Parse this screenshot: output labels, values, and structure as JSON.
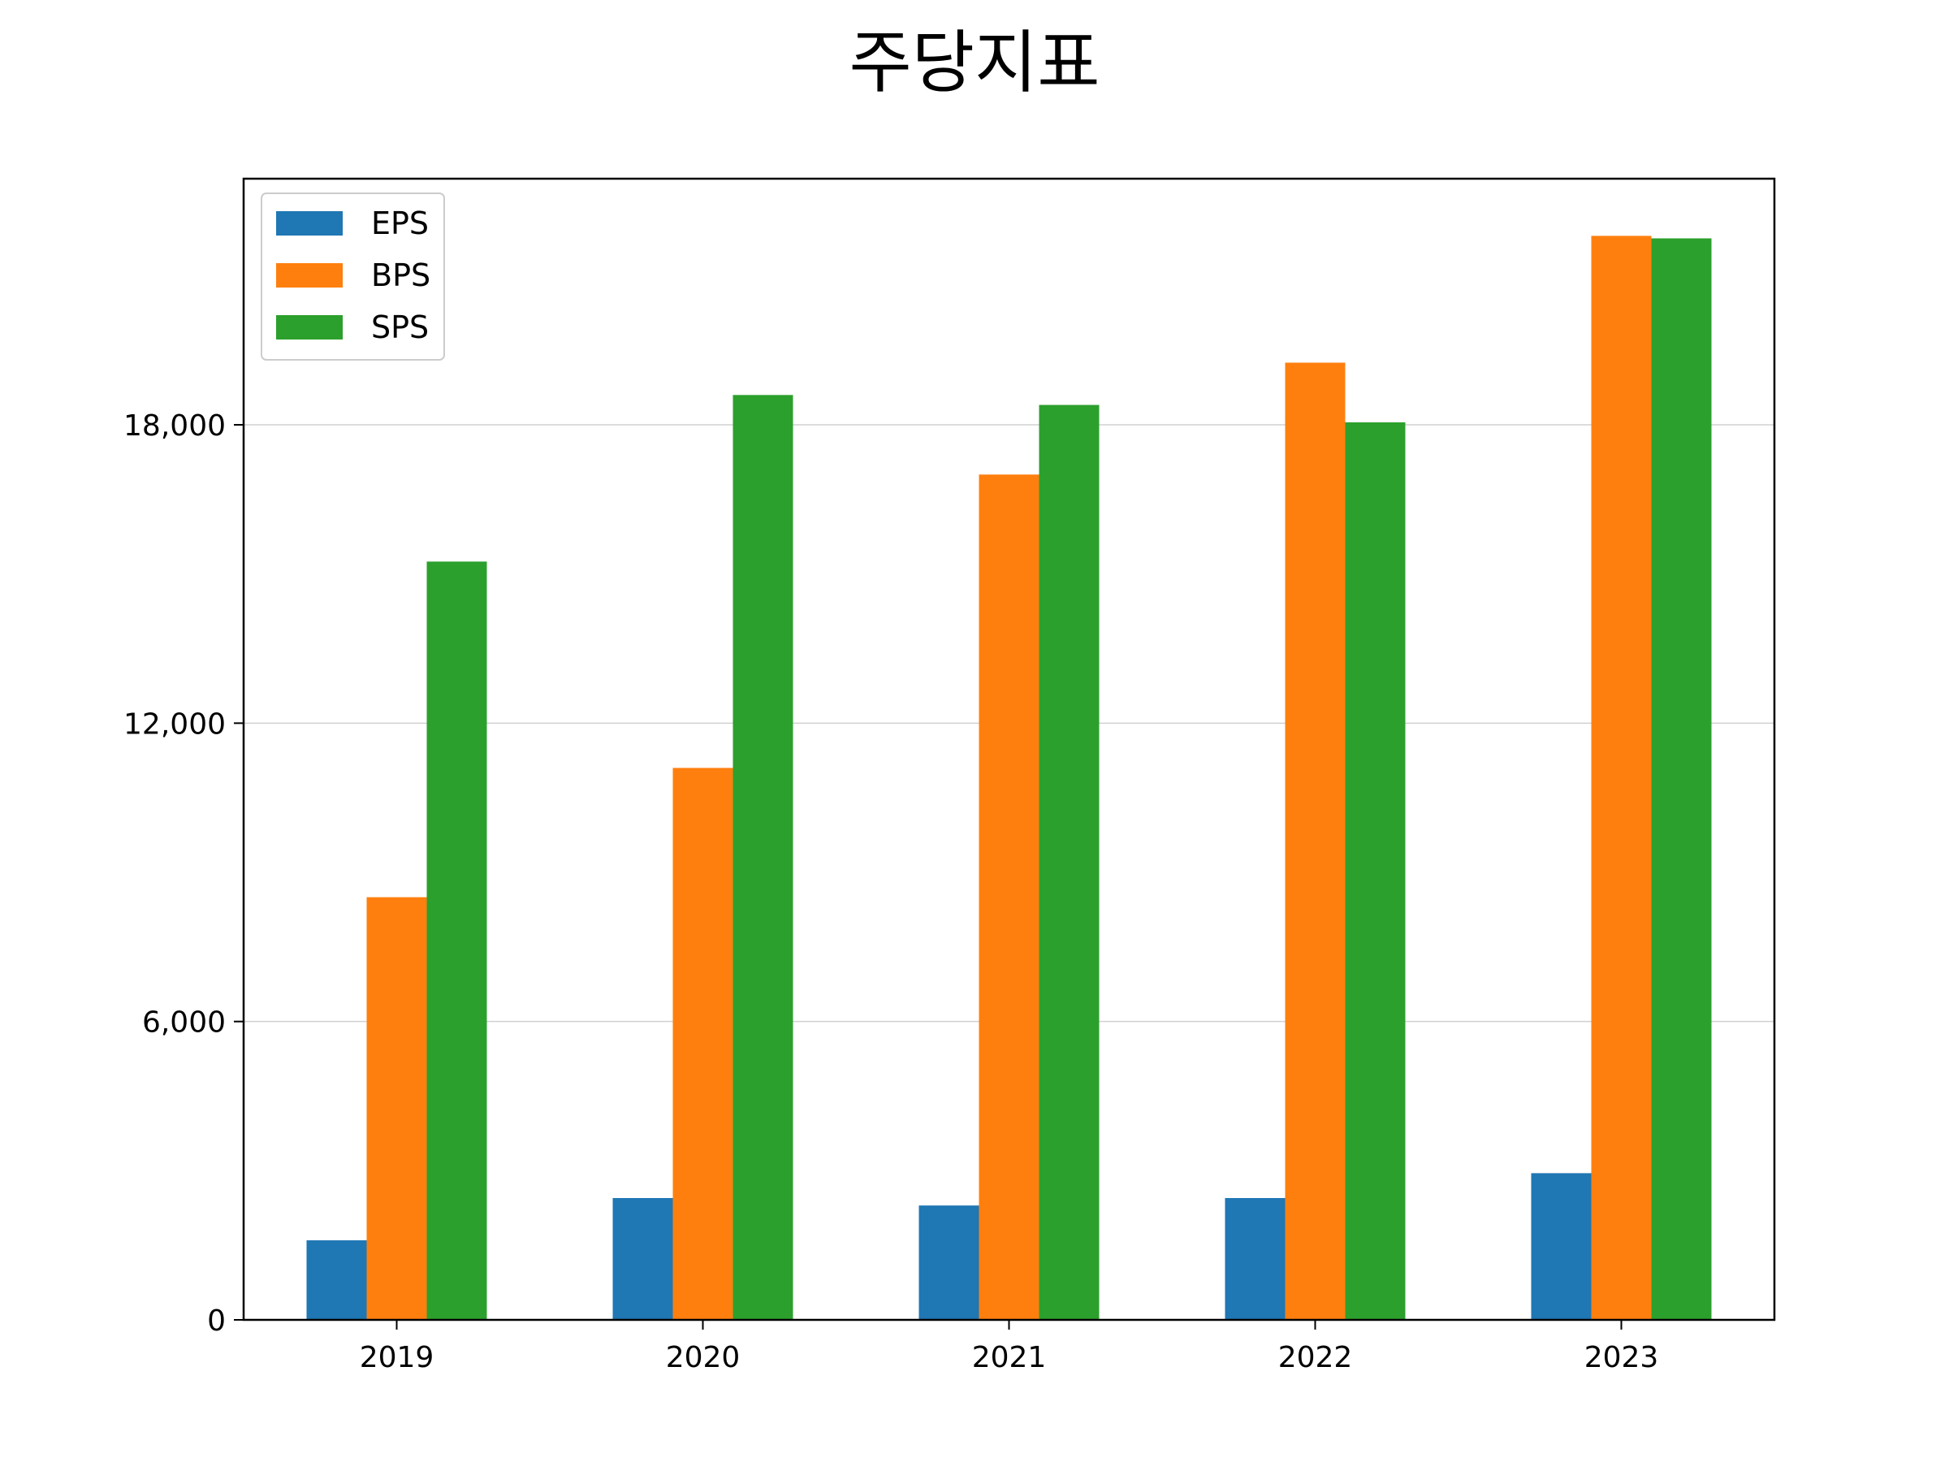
{
  "chart_data": {
    "type": "bar",
    "title": "주당지표",
    "xlabel": "",
    "ylabel": "",
    "categories": [
      "2019",
      "2020",
      "2021",
      "2022",
      "2023"
    ],
    "series": [
      {
        "name": "EPS",
        "color": "#1f77b4",
        "values": [
          1600,
          2450,
          2300,
          2450,
          2950
        ]
      },
      {
        "name": "BPS",
        "color": "#ff7f0e",
        "values": [
          8500,
          11100,
          17000,
          19250,
          21800
        ]
      },
      {
        "name": "SPS",
        "color": "#2ca02c",
        "values": [
          15250,
          18600,
          18400,
          18050,
          21750
        ]
      }
    ],
    "ylim": [
      0,
      22950
    ],
    "yticks": [
      0,
      6000,
      12000,
      18000
    ],
    "ytick_labels": [
      "0",
      "6,000",
      "12,000",
      "18,000"
    ],
    "grid": "y",
    "legend_position": "top-left"
  }
}
